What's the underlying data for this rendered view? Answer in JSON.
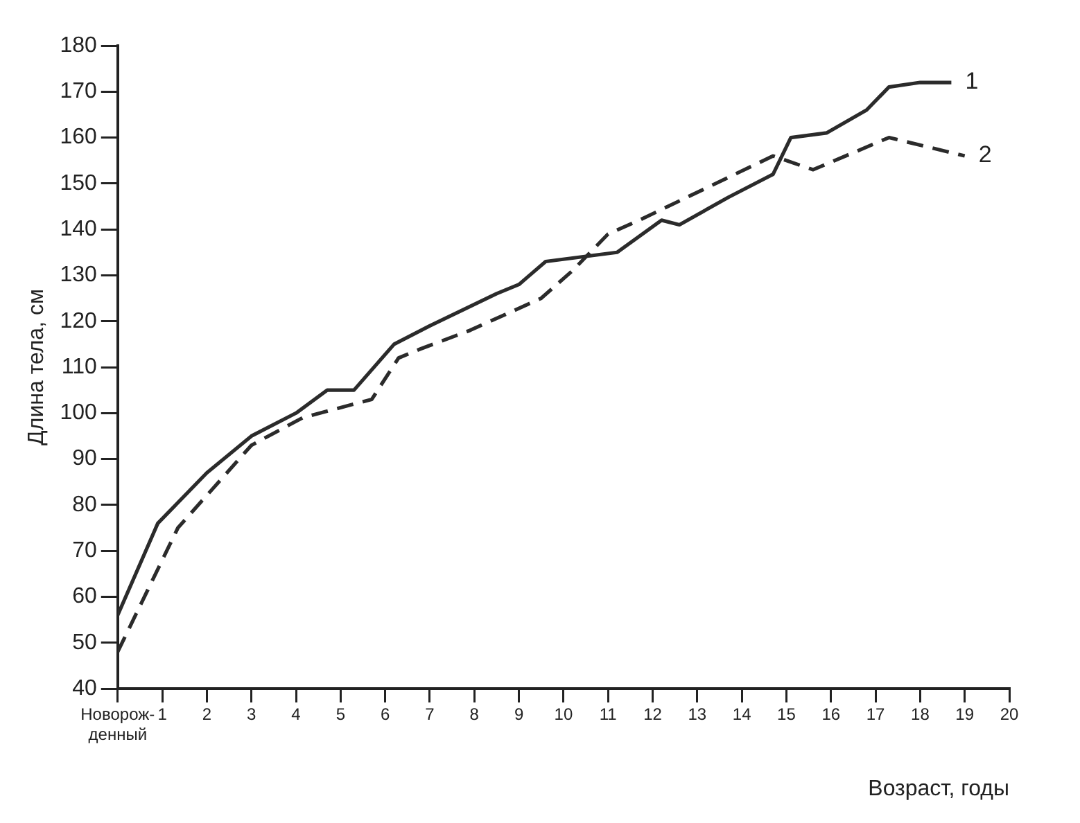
{
  "chart_data": {
    "type": "line",
    "xlabel": "Возраст, годы",
    "ylabel": "Длина тела, см",
    "xlim": [
      0,
      20
    ],
    "xticks": [
      {
        "value": 0,
        "label": "Новорож-денный"
      },
      1,
      2,
      3,
      4,
      5,
      6,
      7,
      8,
      9,
      10,
      11,
      12,
      13,
      14,
      15,
      16,
      17,
      18,
      19,
      20
    ],
    "ylim": [
      40,
      180
    ],
    "yticks": [
      40,
      50,
      60,
      70,
      80,
      90,
      100,
      110,
      120,
      130,
      140,
      150,
      160,
      170,
      180
    ],
    "grid": false,
    "legend": false,
    "marker": "none",
    "series": [
      {
        "name": "1",
        "color": "#2b2b2b",
        "line_style": "solid",
        "x": [
          0,
          0.9,
          2,
          3,
          4,
          4.7,
          5.3,
          6.2,
          7,
          8.5,
          9,
          9.6,
          11.2,
          12.2,
          12.6,
          13.7,
          14.7,
          15.1,
          15.9,
          16.8,
          17.3,
          18,
          18.7
        ],
        "values": [
          56,
          76,
          87,
          95,
          100,
          105,
          105,
          115,
          119,
          126,
          128,
          133,
          135,
          142,
          141,
          147,
          152,
          160,
          161,
          166,
          171,
          172,
          172
        ]
      },
      {
        "name": "2",
        "color": "#2b2b2b",
        "line_style": "dashed",
        "x": [
          0,
          1.35,
          3,
          4.15,
          5.7,
          6.3,
          6.8,
          7.9,
          9.5,
          10.2,
          11,
          11.7,
          14.7,
          15.6,
          17.3,
          19
        ],
        "values": [
          48,
          75,
          93,
          99,
          103,
          112,
          114,
          118,
          125,
          131,
          139,
          142,
          156,
          153,
          160,
          156
        ]
      }
    ]
  }
}
